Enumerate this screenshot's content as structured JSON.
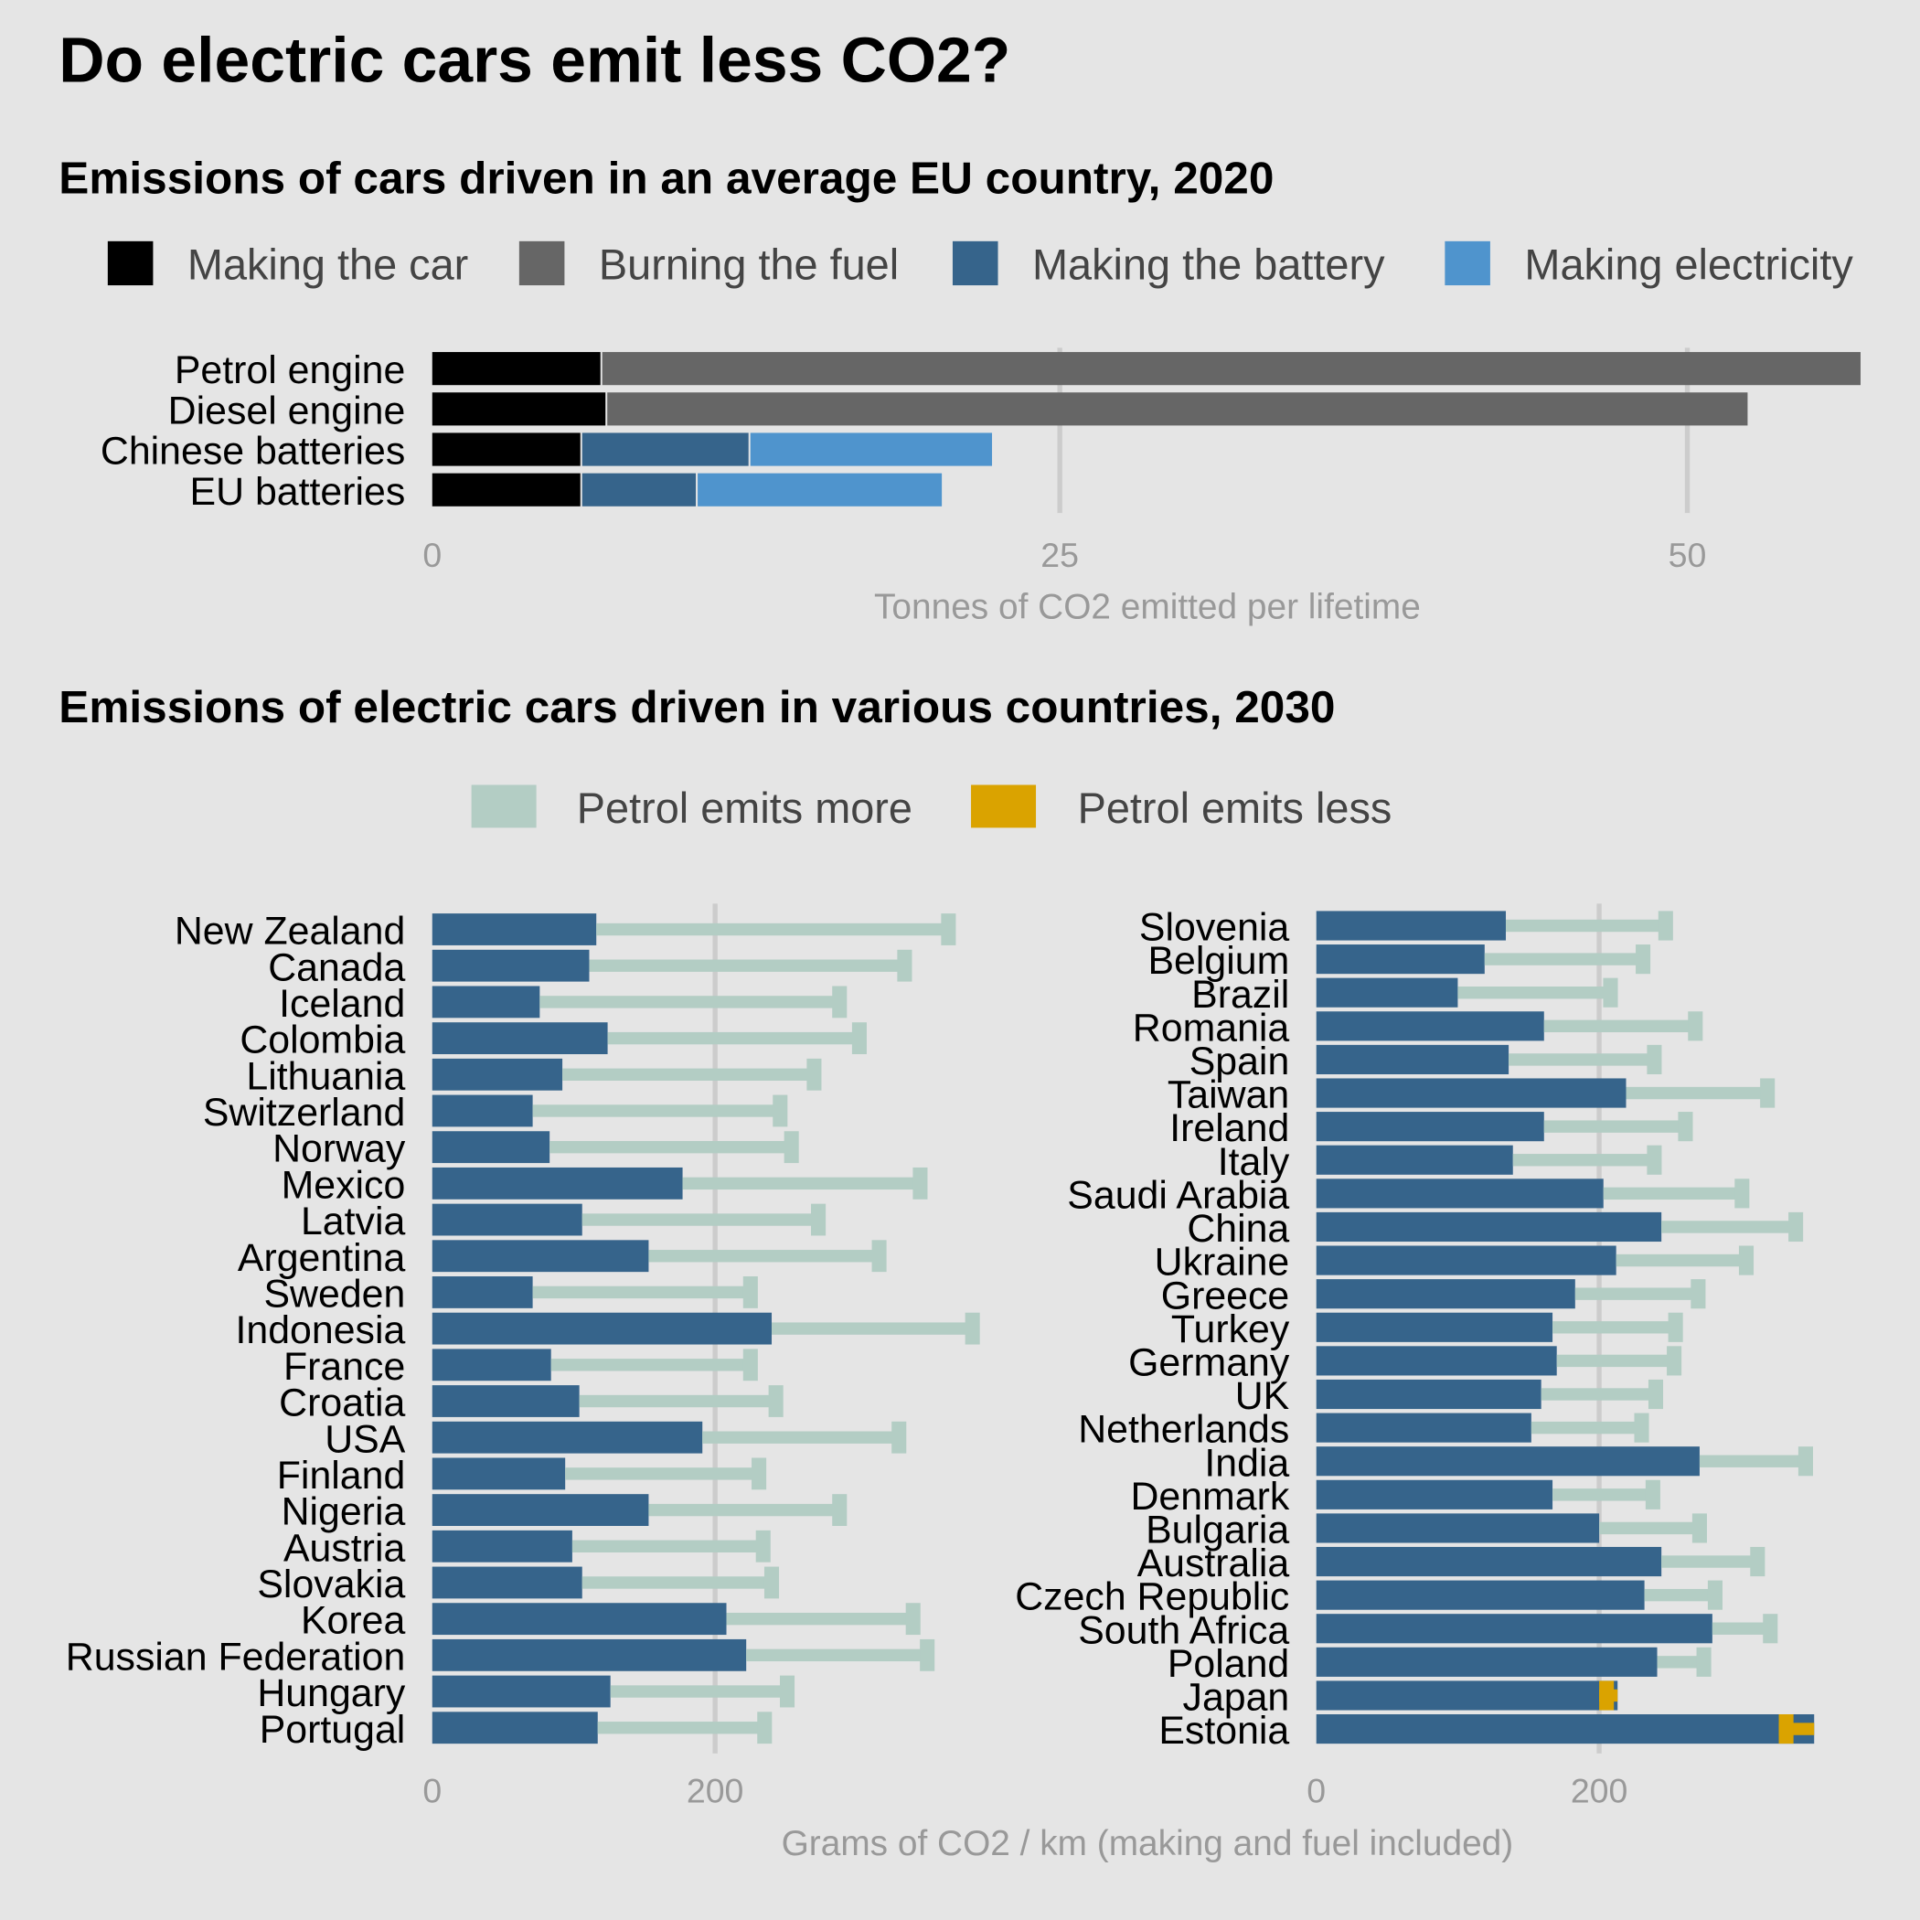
{
  "title": "Do electric cars emit less CO2?",
  "colors": {
    "background": "#e5e5e5",
    "making_car": "#000000",
    "burning_fuel": "#666666",
    "making_battery": "#36648b",
    "making_electricity": "#4f94cd",
    "petrol_more": "#b3cdc4",
    "petrol_less": "#daa300",
    "grid": "#cccccc"
  },
  "chart_data": [
    {
      "type": "bar",
      "stacked": true,
      "orientation": "horizontal",
      "title": "Emissions of cars driven in an average EU country, 2020",
      "xlabel": "Tonnes of CO2 emitted per lifetime",
      "xlim": [
        0,
        57
      ],
      "xticks": [
        "0",
        "25",
        "50"
      ],
      "legend_position": "top",
      "categories": [
        "Petrol engine",
        "Diesel engine",
        "Chinese batteries",
        "EU batteries"
      ],
      "series": [
        {
          "name": "Making the car",
          "values": [
            6.7,
            6.9,
            5.9,
            5.9
          ]
        },
        {
          "name": "Burning the fuel",
          "values": [
            50.2,
            45.5,
            0,
            0
          ]
        },
        {
          "name": "Making the battery",
          "values": [
            0,
            0,
            6.7,
            4.6
          ]
        },
        {
          "name": "Making electricity",
          "values": [
            0,
            0,
            9.7,
            9.8
          ]
        }
      ]
    },
    {
      "type": "bar",
      "orientation": "horizontal",
      "title": "Emissions of electric cars driven in various countries, 2030",
      "xlabel": "Grams of CO2 / km (making and fuel included)",
      "legend_position": "top",
      "legend": [
        "Petrol emits more",
        "Petrol emits less"
      ],
      "panels": [
        {
          "xticks": [
            "0",
            "200"
          ],
          "categories": [
            "New Zealand",
            "Canada",
            "Iceland",
            "Colombia",
            "Lithuania",
            "Switzerland",
            "Norway",
            "Mexico",
            "Latvia",
            "Argentina",
            "Sweden",
            "Indonesia",
            "France",
            "Croatia",
            "USA",
            "Finland",
            "Nigeria",
            "Austria",
            "Slovakia",
            "Korea",
            "Russian Federation",
            "Hungary",
            "Portugal"
          ],
          "electric": [
            116,
            111,
            76,
            124,
            92,
            71,
            83,
            177,
            106,
            153,
            71,
            240,
            84,
            104,
            191,
            94,
            153,
            99,
            106,
            208,
            222,
            126,
            117
          ],
          "petrol": [
            365,
            334,
            288,
            302,
            270,
            246,
            254,
            345,
            273,
            316,
            225,
            382,
            225,
            243,
            330,
            231,
            288,
            234,
            240,
            340,
            350,
            251,
            235
          ]
        },
        {
          "xticks": [
            "0",
            "200"
          ],
          "categories": [
            "Slovenia",
            "Belgium",
            "Brazil",
            "Romania",
            "Spain",
            "Taiwan",
            "Ireland",
            "Italy",
            "Saudi Arabia",
            "China",
            "Ukraine",
            "Greece",
            "Turkey",
            "Germany",
            "UK",
            "Netherlands",
            "India",
            "Denmark",
            "Bulgaria",
            "Australia",
            "Czech Republic",
            "South Africa",
            "Poland",
            "Japan",
            "Estonia"
          ],
          "electric": [
            134,
            119,
            100,
            161,
            136,
            219,
            161,
            139,
            203,
            244,
            212,
            183,
            167,
            170,
            159,
            152,
            271,
            167,
            200,
            244,
            232,
            280,
            241,
            213,
            352
          ],
          "petrol": [
            247,
            231,
            208,
            268,
            239,
            319,
            261,
            239,
            301,
            339,
            304,
            270,
            254,
            253,
            240,
            230,
            346,
            238,
            271,
            312,
            282,
            321,
            274,
            200,
            327
          ]
        }
      ]
    }
  ]
}
